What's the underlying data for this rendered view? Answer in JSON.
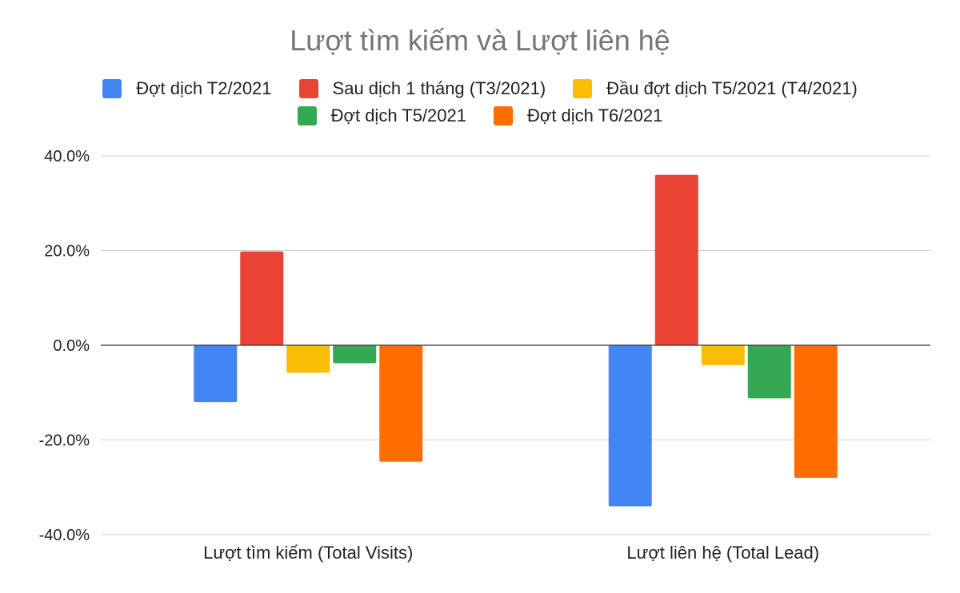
{
  "chart_data": {
    "type": "bar",
    "title": "Lượt tìm kiếm và Lượt liên hệ",
    "xlabel": "",
    "ylabel": "",
    "categories": [
      "Lượt tìm kiếm (Total Visits)",
      "Lượt liên hệ (Total Lead)"
    ],
    "series": [
      {
        "name": "Đợt dịch T2/2021",
        "color": "#4285f4",
        "values": [
          -12.0,
          -34.0
        ]
      },
      {
        "name": "Sau dịch 1 tháng (T3/2021)",
        "color": "#ea4335",
        "values": [
          19.8,
          36.0
        ]
      },
      {
        "name": "Đầu đợt dịch T5/2021 (T4/2021)",
        "color": "#fbbc04",
        "values": [
          -5.8,
          -4.2
        ]
      },
      {
        "name": "Đợt dịch T5/2021",
        "color": "#34a853",
        "values": [
          -3.8,
          -11.2
        ]
      },
      {
        "name": "Đợt dịch T6/2021",
        "color": "#ff6d01",
        "values": [
          -24.6,
          -28.0
        ]
      }
    ],
    "ylim": [
      -40,
      40
    ],
    "yticks": [
      40,
      20,
      0,
      -20,
      -40
    ],
    "ytick_labels": [
      "40.0%",
      "20.0%",
      "0.0%",
      "-20.0%",
      "-40.0%"
    ],
    "grid": true,
    "legend_position": "top"
  }
}
